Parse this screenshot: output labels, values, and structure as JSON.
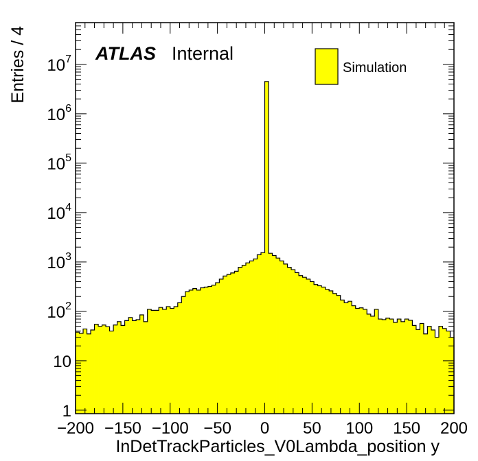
{
  "chart_data": {
    "type": "bar",
    "histogram": true,
    "title": "",
    "xlabel": "InDetTrackParticles_V0Lambda_position y",
    "ylabel": "Entries / 4",
    "xlim": [
      -200,
      200
    ],
    "ylim": [
      0.85,
      70000000
    ],
    "yscale": "log",
    "bin_width": 4,
    "x_ticks": [
      {
        "value": -200,
        "label": "−200"
      },
      {
        "value": -150,
        "label": "−150"
      },
      {
        "value": -100,
        "label": "−100"
      },
      {
        "value": -50,
        "label": "−50"
      },
      {
        "value": 0,
        "label": "0"
      },
      {
        "value": 50,
        "label": "50"
      },
      {
        "value": 100,
        "label": "100"
      },
      {
        "value": 150,
        "label": "150"
      },
      {
        "value": 200,
        "label": "200"
      }
    ],
    "y_ticks": [
      {
        "value": 1,
        "base": "1",
        "exp": ""
      },
      {
        "value": 10,
        "base": "10",
        "exp": ""
      },
      {
        "value": 100,
        "base": "10",
        "exp": "2"
      },
      {
        "value": 1000,
        "base": "10",
        "exp": "3"
      },
      {
        "value": 10000,
        "base": "10",
        "exp": "4"
      },
      {
        "value": 100000,
        "base": "10",
        "exp": "5"
      },
      {
        "value": 1000000,
        "base": "10",
        "exp": "6"
      },
      {
        "value": 10000000,
        "base": "10",
        "exp": "7"
      }
    ],
    "series": [
      {
        "name": "Simulation",
        "color": "#ffff00",
        "edges": [
          -200,
          -196,
          -192,
          -188,
          -184,
          -180,
          -176,
          -172,
          -168,
          -164,
          -160,
          -156,
          -152,
          -148,
          -144,
          -140,
          -136,
          -132,
          -128,
          -124,
          -120,
          -116,
          -112,
          -108,
          -104,
          -100,
          -96,
          -92,
          -88,
          -84,
          -80,
          -76,
          -72,
          -68,
          -64,
          -60,
          -56,
          -52,
          -48,
          -44,
          -40,
          -36,
          -32,
          -28,
          -24,
          -20,
          -16,
          -12,
          -8,
          -4,
          0,
          4,
          8,
          12,
          16,
          20,
          24,
          28,
          32,
          36,
          40,
          44,
          48,
          52,
          56,
          60,
          64,
          68,
          72,
          76,
          80,
          84,
          88,
          92,
          96,
          100,
          104,
          108,
          112,
          116,
          120,
          124,
          128,
          132,
          136,
          140,
          144,
          148,
          152,
          156,
          160,
          164,
          168,
          172,
          176,
          180,
          184,
          188,
          192,
          196,
          200
        ],
        "values": [
          38,
          36,
          44,
          35,
          42,
          55,
          50,
          53,
          49,
          40,
          53,
          62,
          52,
          65,
          75,
          65,
          68,
          85,
          62,
          110,
          105,
          105,
          120,
          110,
          125,
          115,
          125,
          150,
          200,
          250,
          270,
          290,
          270,
          300,
          310,
          320,
          340,
          380,
          450,
          520,
          560,
          600,
          650,
          780,
          860,
          960,
          1050,
          1150,
          1400,
          1550,
          4500000,
          1500,
          1350,
          1200,
          1050,
          910,
          780,
          700,
          610,
          530,
          490,
          450,
          400,
          350,
          330,
          310,
          280,
          260,
          230,
          210,
          170,
          150,
          160,
          130,
          115,
          118,
          110,
          88,
          80,
          110,
          70,
          68,
          73,
          70,
          60,
          70,
          62,
          70,
          66,
          52,
          43,
          57,
          35,
          50,
          42,
          30,
          50,
          45,
          40,
          30
        ],
        "errors": []
      }
    ],
    "legend": {
      "position": "top-right",
      "entries": [
        "Simulation"
      ]
    },
    "grid": false
  },
  "annotations": {
    "experiment": "ATLAS",
    "status": "Internal"
  }
}
